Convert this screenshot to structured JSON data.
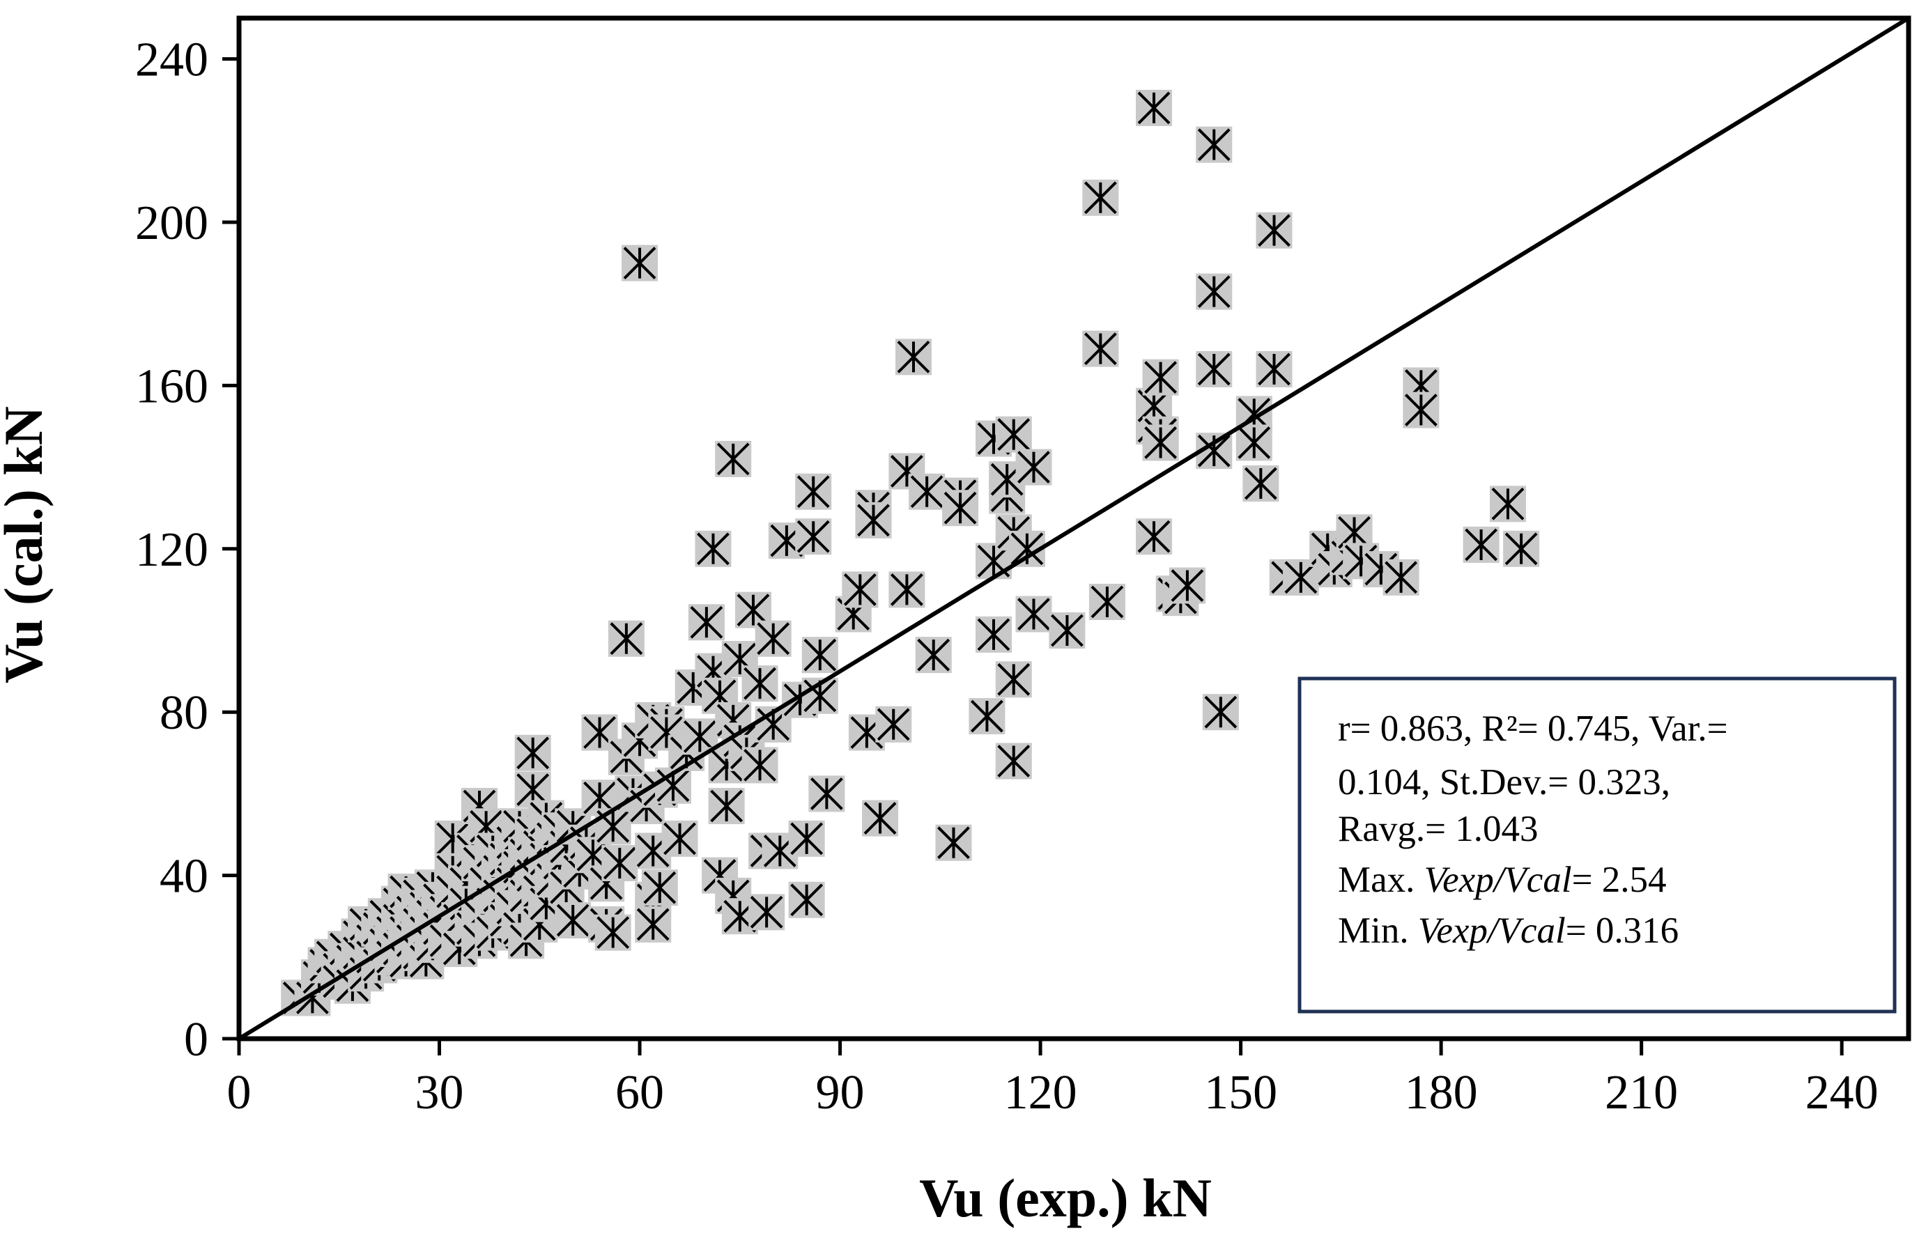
{
  "chart_data": {
    "type": "scatter",
    "xlabel": "Vu (exp.) kN",
    "ylabel": "Vu (cal.) kN",
    "xlim": [
      0,
      250
    ],
    "ylim": [
      0,
      250
    ],
    "x_ticks": [
      "0",
      "30",
      "60",
      "90",
      "120",
      "150",
      "180",
      "210",
      "240"
    ],
    "y_ticks": [
      "0",
      "40",
      "80",
      "120",
      "160",
      "200",
      "240"
    ],
    "grid": false,
    "legend": "none",
    "reference_line": {
      "name": "",
      "x": [
        0,
        250
      ],
      "y": [
        0,
        250
      ]
    },
    "marker": {
      "shape": "asterisk",
      "color": "#000000",
      "background": "#c9c9c9"
    },
    "annotation": {
      "line1": "r= 0.863, R²= 0.745, Var.=",
      "line2": "0.104, St.Dev.= 0.323,",
      "line3": "Ravg.= 1.043",
      "line4_prefix": "Max. ",
      "line4_math": "Vexp/Vcal",
      "line4_suffix": "= 2.54",
      "line5_prefix": "Min. ",
      "line5_math": "Vexp/Vcal",
      "line5_suffix": "= 0.316"
    },
    "series": [
      {
        "name": "",
        "points": [
          [
            9,
            10
          ],
          [
            11,
            10
          ],
          [
            12,
            15
          ],
          [
            13,
            18
          ],
          [
            14,
            20
          ],
          [
            15,
            17
          ],
          [
            15,
            14
          ],
          [
            16,
            22
          ],
          [
            17,
            19
          ],
          [
            17,
            13
          ],
          [
            18,
            25
          ],
          [
            18,
            21
          ],
          [
            19,
            16
          ],
          [
            19,
            28
          ],
          [
            20,
            24
          ],
          [
            20,
            20
          ],
          [
            21,
            27
          ],
          [
            21,
            18
          ],
          [
            22,
            30
          ],
          [
            22,
            23
          ],
          [
            23,
            26
          ],
          [
            23,
            20
          ],
          [
            24,
            33
          ],
          [
            24,
            29
          ],
          [
            24,
            22
          ],
          [
            25,
            36
          ],
          [
            25,
            26
          ],
          [
            25,
            19
          ],
          [
            26,
            31
          ],
          [
            26,
            24
          ],
          [
            27,
            35
          ],
          [
            27,
            28
          ],
          [
            27,
            21
          ],
          [
            28,
            32
          ],
          [
            28,
            26
          ],
          [
            28,
            19
          ],
          [
            29,
            37
          ],
          [
            29,
            30
          ],
          [
            29,
            23
          ],
          [
            30,
            34
          ],
          [
            30,
            27
          ],
          [
            31,
            31
          ],
          [
            31,
            24
          ],
          [
            32,
            49
          ],
          [
            32,
            41
          ],
          [
            32,
            36
          ],
          [
            33,
            29
          ],
          [
            33,
            22
          ],
          [
            34,
            38
          ],
          [
            34,
            33
          ],
          [
            35,
            46
          ],
          [
            35,
            27
          ],
          [
            36,
            57
          ],
          [
            36,
            43
          ],
          [
            36,
            30
          ],
          [
            36,
            24
          ],
          [
            37,
            52
          ],
          [
            37,
            38
          ],
          [
            38,
            46
          ],
          [
            38,
            33
          ],
          [
            38,
            26
          ],
          [
            39,
            41
          ],
          [
            39,
            35
          ],
          [
            40,
            44
          ],
          [
            40,
            29
          ],
          [
            41,
            48
          ],
          [
            41,
            38
          ],
          [
            41,
            32
          ],
          [
            42,
            52
          ],
          [
            42,
            42
          ],
          [
            42,
            27
          ],
          [
            43,
            45
          ],
          [
            43,
            35
          ],
          [
            43,
            24
          ],
          [
            44,
            70
          ],
          [
            44,
            61
          ],
          [
            44,
            50
          ],
          [
            44,
            40
          ],
          [
            45,
            47
          ],
          [
            45,
            36
          ],
          [
            45,
            28
          ],
          [
            46,
            54
          ],
          [
            46,
            44
          ],
          [
            46,
            33
          ],
          [
            47,
            49
          ],
          [
            47,
            39
          ],
          [
            48,
            51
          ],
          [
            48,
            43
          ],
          [
            49,
            47
          ],
          [
            49,
            37
          ],
          [
            50,
            52
          ],
          [
            50,
            29
          ],
          [
            51,
            41
          ],
          [
            52,
            48
          ],
          [
            53,
            45
          ],
          [
            54,
            75
          ],
          [
            54,
            59
          ],
          [
            55,
            38
          ],
          [
            55,
            28
          ],
          [
            56,
            52
          ],
          [
            56,
            26
          ],
          [
            57,
            43
          ],
          [
            58,
            98
          ],
          [
            58,
            69
          ],
          [
            59,
            60
          ],
          [
            60,
            190
          ],
          [
            60,
            73
          ],
          [
            61,
            57
          ],
          [
            62,
            78
          ],
          [
            62,
            46
          ],
          [
            62,
            34
          ],
          [
            62,
            28
          ],
          [
            63,
            61
          ],
          [
            63,
            37
          ],
          [
            64,
            77
          ],
          [
            64,
            75
          ],
          [
            65,
            62
          ],
          [
            66,
            49
          ],
          [
            67,
            70
          ],
          [
            68,
            86
          ],
          [
            69,
            74
          ],
          [
            70,
            102
          ],
          [
            71,
            120
          ],
          [
            71,
            90
          ],
          [
            72,
            84
          ],
          [
            72,
            40
          ],
          [
            73,
            57
          ],
          [
            73,
            67
          ],
          [
            74,
            78
          ],
          [
            74,
            142
          ],
          [
            74,
            35
          ],
          [
            75,
            93
          ],
          [
            75,
            73
          ],
          [
            75,
            30
          ],
          [
            76,
            70
          ],
          [
            77,
            105
          ],
          [
            78,
            87
          ],
          [
            78,
            67
          ],
          [
            79,
            46
          ],
          [
            79,
            31
          ],
          [
            80,
            98
          ],
          [
            80,
            77
          ],
          [
            81,
            46
          ],
          [
            82,
            122
          ],
          [
            84,
            83
          ],
          [
            85,
            49
          ],
          [
            85,
            34
          ],
          [
            86,
            134
          ],
          [
            86,
            123
          ],
          [
            87,
            94
          ],
          [
            87,
            84
          ],
          [
            88,
            60
          ],
          [
            92,
            104
          ],
          [
            93,
            110
          ],
          [
            94,
            75
          ],
          [
            95,
            130
          ],
          [
            95,
            127
          ],
          [
            96,
            54
          ],
          [
            98,
            77
          ],
          [
            100,
            110
          ],
          [
            100,
            139
          ],
          [
            101,
            167
          ],
          [
            103,
            134
          ],
          [
            104,
            94
          ],
          [
            107,
            48
          ],
          [
            108,
            133
          ],
          [
            108,
            130
          ],
          [
            112,
            79
          ],
          [
            113,
            117
          ],
          [
            113,
            99
          ],
          [
            113,
            147
          ],
          [
            115,
            133
          ],
          [
            115,
            137
          ],
          [
            116,
            124
          ],
          [
            116,
            148
          ],
          [
            116,
            88
          ],
          [
            116,
            68
          ],
          [
            118,
            120
          ],
          [
            119,
            140
          ],
          [
            119,
            104
          ],
          [
            124,
            100
          ],
          [
            129,
            206
          ],
          [
            129,
            169
          ],
          [
            130,
            107
          ],
          [
            137,
            228
          ],
          [
            137,
            150
          ],
          [
            137,
            155
          ],
          [
            137,
            123
          ],
          [
            138,
            148
          ],
          [
            138,
            162
          ],
          [
            138,
            146
          ],
          [
            140,
            109
          ],
          [
            141,
            108
          ],
          [
            142,
            111
          ],
          [
            146,
            219
          ],
          [
            146,
            183
          ],
          [
            146,
            164
          ],
          [
            146,
            144
          ],
          [
            147,
            80
          ],
          [
            152,
            153
          ],
          [
            152,
            146
          ],
          [
            153,
            136
          ],
          [
            155,
            198
          ],
          [
            155,
            164
          ],
          [
            157,
            113
          ],
          [
            159,
            113
          ],
          [
            163,
            120
          ],
          [
            164,
            115
          ],
          [
            166,
            118
          ],
          [
            167,
            124
          ],
          [
            168,
            117
          ],
          [
            171,
            115
          ],
          [
            174,
            113
          ],
          [
            177,
            160
          ],
          [
            177,
            154
          ],
          [
            186,
            121
          ],
          [
            190,
            131
          ],
          [
            192,
            120
          ]
        ]
      }
    ]
  }
}
